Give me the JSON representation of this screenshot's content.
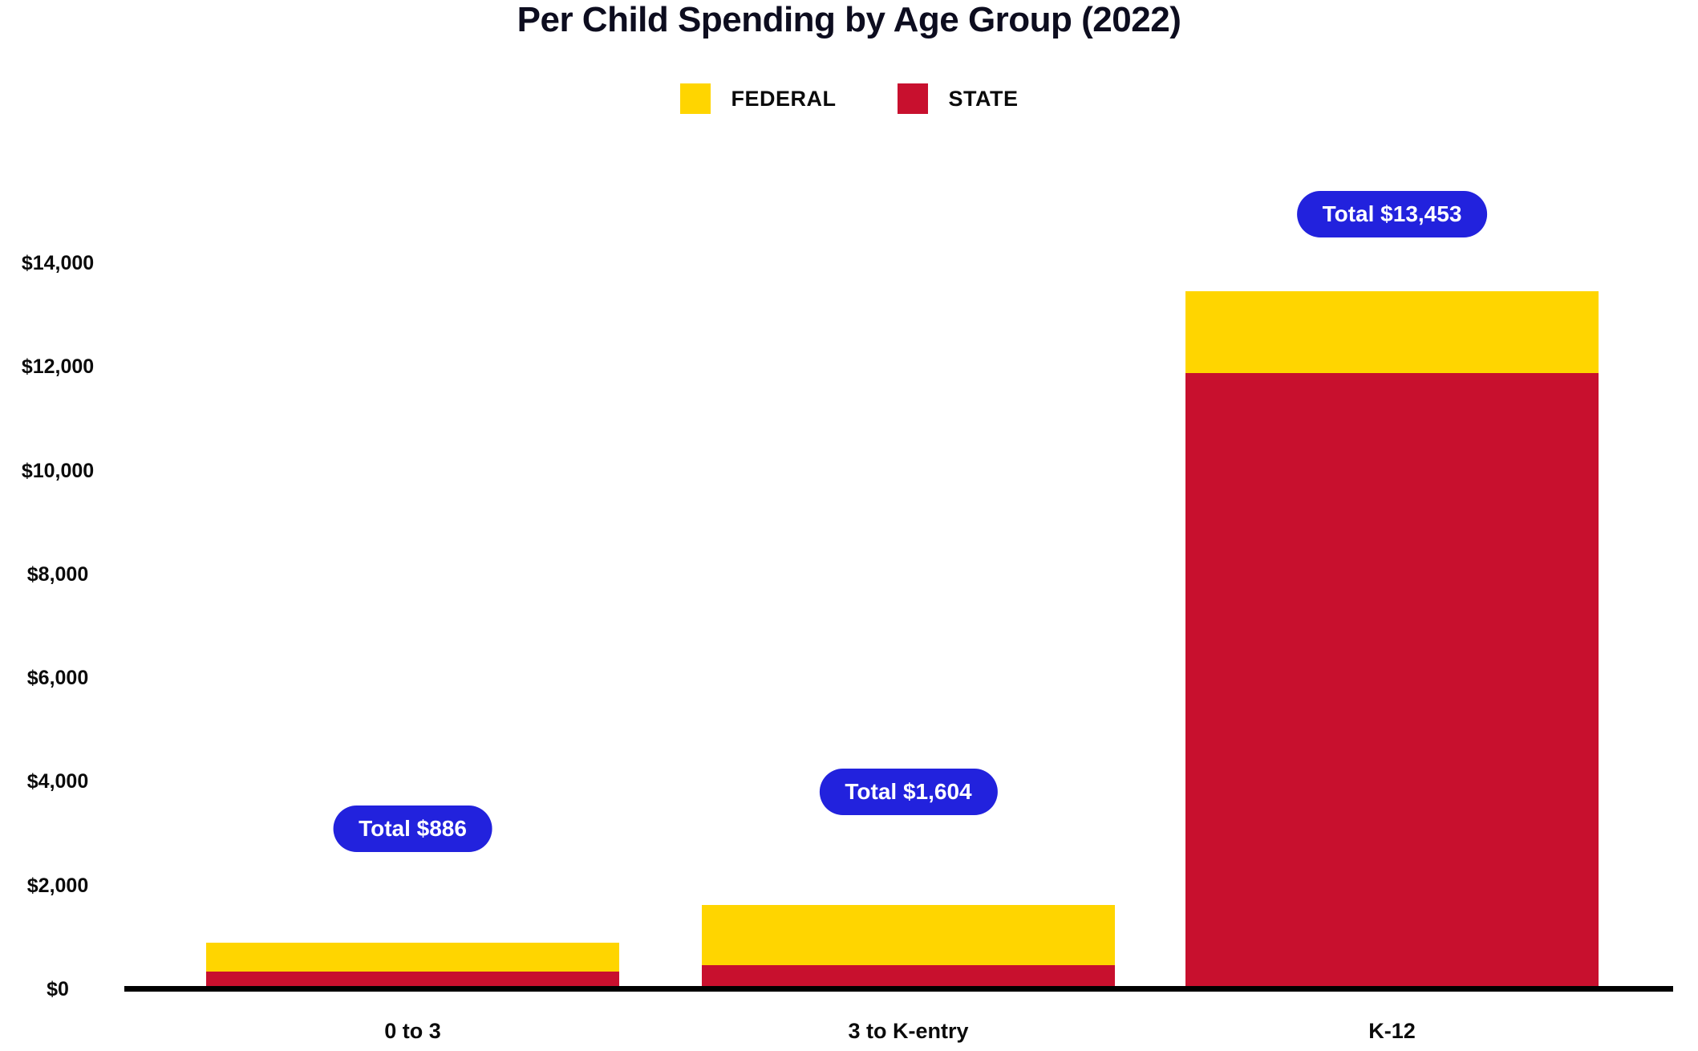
{
  "title": "Per Child Spending by Age Group (2022)",
  "colors": {
    "federal": "#FFD500",
    "state": "#C8102E",
    "badge": "#2222DD",
    "axis": "#000000",
    "text": "#0D0D1F"
  },
  "legend": {
    "items": [
      {
        "label": "FEDERAL",
        "color": "#FFD500"
      },
      {
        "label": "STATE",
        "color": "#C8102E"
      }
    ]
  },
  "chart_data": {
    "type": "bar",
    "stacked": true,
    "stack_bottom_to_top": [
      "STATE",
      "FEDERAL"
    ],
    "title": "Per Child Spending by Age Group (2022)",
    "categories": [
      "0 to 3",
      "3 to K-entry",
      "K-12"
    ],
    "series": [
      {
        "name": "FEDERAL",
        "color": "#FFD500",
        "values": [
          560,
          1158,
          1583
        ]
      },
      {
        "name": "STATE",
        "color": "#C8102E",
        "values": [
          326,
          446,
          11870
        ]
      }
    ],
    "totals": [
      886,
      1604,
      13453
    ],
    "total_labels": [
      "Total $886",
      "Total $1,604",
      "Total $13,453"
    ],
    "xlabel": "",
    "ylabel": "",
    "ylim": [
      0,
      14000
    ],
    "ytick_step": 2000,
    "ytick_labels": [
      "$0",
      "$2,000",
      "$4,000",
      "$6,000",
      "$8,000",
      "$10,000",
      "$12,000",
      "$14,000"
    ],
    "grid": false,
    "legend_position": "top-center"
  }
}
